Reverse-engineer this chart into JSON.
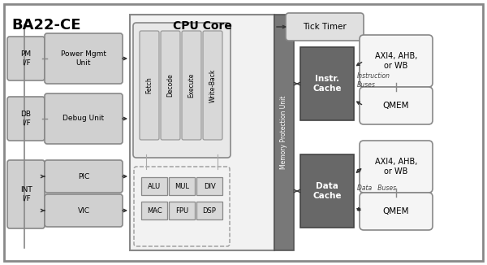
{
  "title": "BA22-CE",
  "bg_color": "#ffffff",
  "light_gray": "#d0d0d0",
  "dark_gray": "#686868",
  "pipeline_stages": [
    "Fetch",
    "Decode",
    "Execute",
    "Write-Back"
  ],
  "alu_row1": [
    "ALU",
    "MUL",
    "DIV"
  ],
  "alu_row2": [
    "MAC",
    "FPU",
    "DSP"
  ],
  "figw": 6.0,
  "figh": 3.26,
  "dpi": 100
}
